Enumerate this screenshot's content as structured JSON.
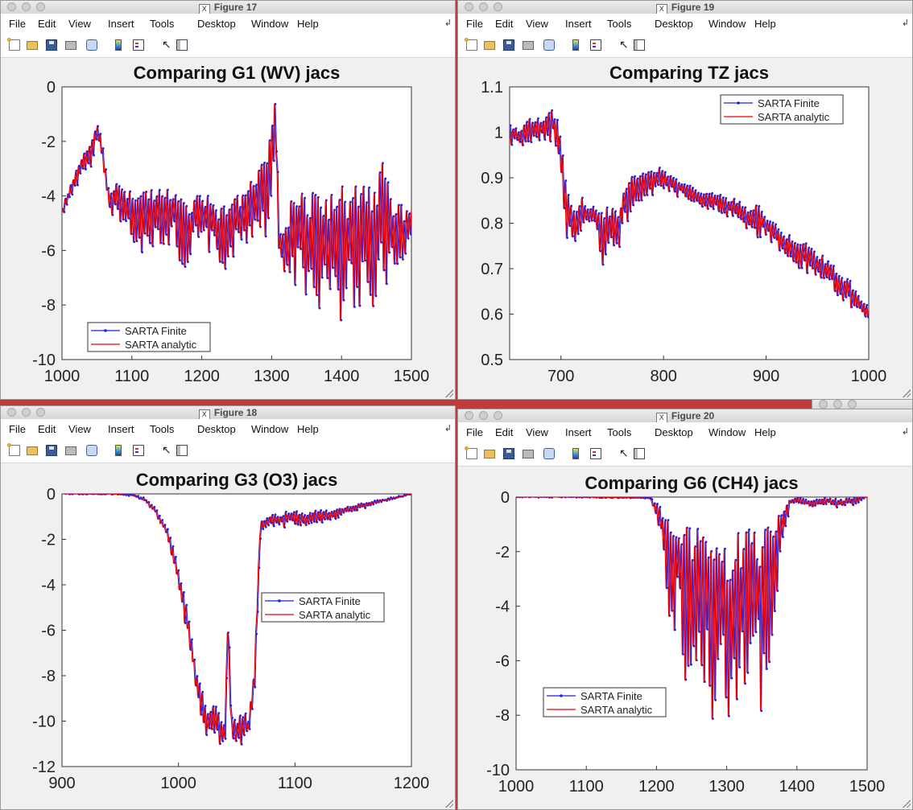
{
  "colors": {
    "finite_series": "#1f1fe6",
    "analytic_series": "#ee0000",
    "desktop_background": "#c43a3a",
    "window_background": "#f0f0f0"
  },
  "menu_labels": [
    "File",
    "Edit",
    "View",
    "Insert",
    "Tools",
    "Desktop",
    "Window",
    "Help"
  ],
  "toolbar_icons": [
    "new-figure-icon",
    "open-file-icon",
    "save-icon",
    "print-icon",
    "link-plot-icon",
    "insert-colorbar-icon",
    "insert-legend-icon",
    "pointer-arrow-icon",
    "property-inspector-icon"
  ],
  "windows": [
    {
      "id": "fig17",
      "title": "Figure 17",
      "chart_data": {
        "type": "line",
        "title": "Comparing G1 (WV) jacs",
        "xlim": [
          1000,
          1500
        ],
        "ylim": [
          -10,
          0
        ],
        "x_ticks": [
          "1000",
          "1100",
          "1200",
          "1300",
          "1400",
          "1500"
        ],
        "y_ticks": [
          "0",
          "-2",
          "-4",
          "-6",
          "-8",
          "-10"
        ],
        "legend": {
          "placement": "bottom-left",
          "entries": [
            "SARTA Finite",
            "SARTA analytic"
          ]
        },
        "grid": false,
        "series": [
          {
            "name": "SARTA Finite",
            "style": "dotted-markers"
          },
          {
            "name": "SARTA analytic",
            "style": "solid"
          }
        ],
        "x": [
          1000,
          1010,
          1020,
          1030,
          1040,
          1045,
          1050,
          1055,
          1060,
          1065,
          1070,
          1075,
          1080,
          1090,
          1100,
          1110,
          1120,
          1130,
          1140,
          1150,
          1160,
          1170,
          1180,
          1190,
          1200,
          1210,
          1220,
          1230,
          1240,
          1250,
          1260,
          1270,
          1280,
          1285,
          1290,
          1295,
          1300,
          1303,
          1306,
          1310,
          1320,
          1330,
          1340,
          1350,
          1360,
          1370,
          1380,
          1390,
          1400,
          1410,
          1420,
          1430,
          1440,
          1450,
          1460,
          1470,
          1480,
          1490,
          1500
        ],
        "upper": [
          -4.4,
          -3.6,
          -3.0,
          -2.4,
          -2.1,
          -1.6,
          -1.3,
          -1.6,
          -2.7,
          -3.3,
          -3.7,
          -3.3,
          -3.4,
          -3.7,
          -3.6,
          -3.6,
          -3.6,
          -3.5,
          -3.7,
          -3.6,
          -3.3,
          -3.9,
          -4.4,
          -3.7,
          -4.0,
          -3.8,
          -4.2,
          -4.0,
          -4.3,
          -3.8,
          -3.6,
          -3.3,
          -2.8,
          -2.0,
          -2.3,
          -1.6,
          -0.9,
          -0.2,
          -0.2,
          -5.2,
          -4.8,
          -3.7,
          -3.6,
          -3.6,
          -3.5,
          -3.5,
          -3.6,
          -3.8,
          -3.4,
          -3.6,
          -3.3,
          -3.0,
          -3.2,
          -3.3,
          -2.2,
          -3.8,
          -4.0,
          -4.3,
          -4.4
        ],
        "lower": [
          -4.7,
          -4.3,
          -3.7,
          -3.2,
          -3.0,
          -2.5,
          -2.1,
          -2.4,
          -3.5,
          -4.6,
          -5.0,
          -4.8,
          -4.9,
          -5.6,
          -5.7,
          -6.0,
          -6.3,
          -5.9,
          -5.8,
          -6.1,
          -6.0,
          -6.8,
          -6.4,
          -6.2,
          -5.9,
          -6.1,
          -6.6,
          -6.9,
          -6.6,
          -6.2,
          -6.0,
          -5.7,
          -5.3,
          -5.2,
          -6.2,
          -4.8,
          -3.6,
          -2.6,
          -4.2,
          -6.5,
          -7.2,
          -7.3,
          -7.5,
          -7.7,
          -8.2,
          -8.5,
          -8.4,
          -8.7,
          -8.6,
          -8.4,
          -8.0,
          -8.2,
          -8.7,
          -7.7,
          -7.5,
          -7.3,
          -6.9,
          -6.6,
          -5.5
        ]
      }
    },
    {
      "id": "fig19",
      "title": "Figure 19",
      "chart_data": {
        "type": "line",
        "title": "Comparing TZ jacs",
        "xlim": [
          650,
          1000
        ],
        "ylim": [
          0.5,
          1.1
        ],
        "x_ticks": [
          "700",
          "800",
          "900",
          "1000"
        ],
        "y_ticks": [
          "1.1",
          "1",
          "0.9",
          "0.8",
          "0.7",
          "0.6",
          "0.5"
        ],
        "legend": {
          "placement": "top-right",
          "entries": [
            "SARTA Finite",
            "SARTA analytic"
          ]
        },
        "grid": false,
        "series": [
          {
            "name": "SARTA Finite",
            "style": "dotted-markers"
          },
          {
            "name": "SARTA analytic",
            "style": "solid"
          }
        ],
        "x": [
          650,
          660,
          670,
          680,
          690,
          695,
          700,
          705,
          710,
          715,
          720,
          725,
          730,
          735,
          740,
          745,
          750,
          755,
          760,
          770,
          780,
          790,
          795,
          800,
          810,
          820,
          830,
          840,
          850,
          860,
          870,
          880,
          890,
          900,
          910,
          920,
          930,
          940,
          950,
          960,
          970,
          980,
          990,
          1000
        ],
        "upper": [
          1.02,
          1.01,
          1.04,
          1.03,
          1.06,
          1.04,
          0.98,
          0.9,
          0.85,
          0.84,
          0.86,
          0.84,
          0.84,
          0.83,
          0.85,
          0.84,
          0.86,
          0.85,
          0.88,
          0.91,
          0.92,
          0.92,
          0.93,
          0.92,
          0.9,
          0.89,
          0.88,
          0.87,
          0.87,
          0.86,
          0.86,
          0.84,
          0.85,
          0.82,
          0.8,
          0.78,
          0.77,
          0.76,
          0.74,
          0.72,
          0.7,
          0.68,
          0.65,
          0.62
        ],
        "lower": [
          0.97,
          0.96,
          0.97,
          0.97,
          0.98,
          0.96,
          0.9,
          0.76,
          0.72,
          0.74,
          0.79,
          0.78,
          0.8,
          0.78,
          0.68,
          0.74,
          0.72,
          0.7,
          0.78,
          0.82,
          0.85,
          0.86,
          0.87,
          0.87,
          0.86,
          0.85,
          0.84,
          0.83,
          0.82,
          0.81,
          0.8,
          0.78,
          0.77,
          0.76,
          0.74,
          0.72,
          0.7,
          0.68,
          0.67,
          0.66,
          0.63,
          0.61,
          0.59,
          0.57
        ]
      }
    },
    {
      "id": "fig18",
      "title": "Figure 18",
      "chart_data": {
        "type": "line",
        "title": "Comparing G3 (O3) jacs",
        "xlim": [
          900,
          1200
        ],
        "ylim": [
          -12,
          0
        ],
        "x_ticks": [
          "900",
          "1000",
          "1100",
          "1200"
        ],
        "y_ticks": [
          "0",
          "-2",
          "-4",
          "-6",
          "-8",
          "-10",
          "-12"
        ],
        "legend": {
          "placement": "middle-right",
          "entries": [
            "SARTA Finite",
            "SARTA analytic"
          ]
        },
        "grid": false,
        "series": [
          {
            "name": "SARTA Finite",
            "style": "dotted-markers"
          },
          {
            "name": "SARTA analytic",
            "style": "solid"
          }
        ],
        "x": [
          900,
          940,
          960,
          970,
          980,
          990,
          1000,
          1010,
          1015,
          1020,
          1025,
          1030,
          1035,
          1040,
          1042,
          1045,
          1050,
          1055,
          1060,
          1065,
          1070,
          1080,
          1090,
          1100,
          1110,
          1120,
          1130,
          1140,
          1150,
          1160,
          1170,
          1180,
          1190,
          1200
        ],
        "upper": [
          0.0,
          0.0,
          -0.05,
          -0.2,
          -0.6,
          -1.5,
          -3.2,
          -5.8,
          -7.8,
          -8.2,
          -9.5,
          -9.1,
          -9.5,
          -9.8,
          -4.3,
          -9.3,
          -9.6,
          -9.4,
          -9.8,
          -7.0,
          -1.2,
          -0.9,
          -0.8,
          -0.7,
          -0.8,
          -0.7,
          -0.7,
          -0.6,
          -0.5,
          -0.4,
          -0.3,
          -0.2,
          -0.1,
          0.0
        ],
        "lower": [
          0.0,
          0.0,
          -0.08,
          -0.3,
          -0.9,
          -2.0,
          -4.5,
          -7.0,
          -9.0,
          -10.5,
          -11.0,
          -10.8,
          -11.4,
          -11.6,
          -6.5,
          -11.7,
          -11.5,
          -11.0,
          -10.8,
          -9.3,
          -1.6,
          -1.5,
          -1.5,
          -1.4,
          -1.4,
          -1.3,
          -1.2,
          -1.0,
          -0.8,
          -0.6,
          -0.4,
          -0.3,
          -0.15,
          0.0
        ]
      }
    },
    {
      "id": "fig20",
      "title": "Figure 20",
      "chart_data": {
        "type": "line",
        "title": "Comparing G6 (CH4) jacs",
        "xlim": [
          1000,
          1500
        ],
        "ylim": [
          -10,
          0
        ],
        "x_ticks": [
          "1000",
          "1100",
          "1200",
          "1300",
          "1400",
          "1500"
        ],
        "y_ticks": [
          "0",
          "-2",
          "-4",
          "-6",
          "-8",
          "-10"
        ],
        "legend": {
          "placement": "bottom-left",
          "entries": [
            "SARTA Finite",
            "SARTA analytic"
          ]
        },
        "grid": false,
        "series": [
          {
            "name": "SARTA Finite",
            "style": "dotted-markers"
          },
          {
            "name": "SARTA analytic",
            "style": "solid"
          }
        ],
        "x": [
          1000,
          1100,
          1190,
          1200,
          1210,
          1220,
          1230,
          1240,
          1250,
          1260,
          1270,
          1280,
          1290,
          1300,
          1305,
          1310,
          1320,
          1330,
          1340,
          1350,
          1360,
          1370,
          1380,
          1390,
          1400,
          1420,
          1440,
          1460,
          1480,
          1500
        ],
        "upper": [
          0.0,
          0.0,
          -0.02,
          -0.2,
          -0.5,
          -0.4,
          -0.8,
          -0.5,
          -0.9,
          -0.6,
          -1.0,
          -0.7,
          -1.0,
          -0.9,
          -1.2,
          -0.8,
          -1.0,
          -0.7,
          -0.9,
          -0.6,
          -0.5,
          -0.3,
          -0.2,
          -0.05,
          0.0,
          -0.1,
          0.0,
          -0.1,
          0.0,
          0.0
        ],
        "lower": [
          0.0,
          0.0,
          -0.05,
          -1.0,
          -2.3,
          -5.5,
          -4.5,
          -7.1,
          -6.2,
          -6.0,
          -7.5,
          -8.5,
          -7.0,
          -9.2,
          -9.9,
          -7.7,
          -7.3,
          -8.1,
          -6.7,
          -8.5,
          -6.0,
          -4.0,
          -1.5,
          -0.3,
          -0.3,
          -0.4,
          -0.3,
          -0.4,
          -0.3,
          0.0
        ]
      }
    }
  ]
}
